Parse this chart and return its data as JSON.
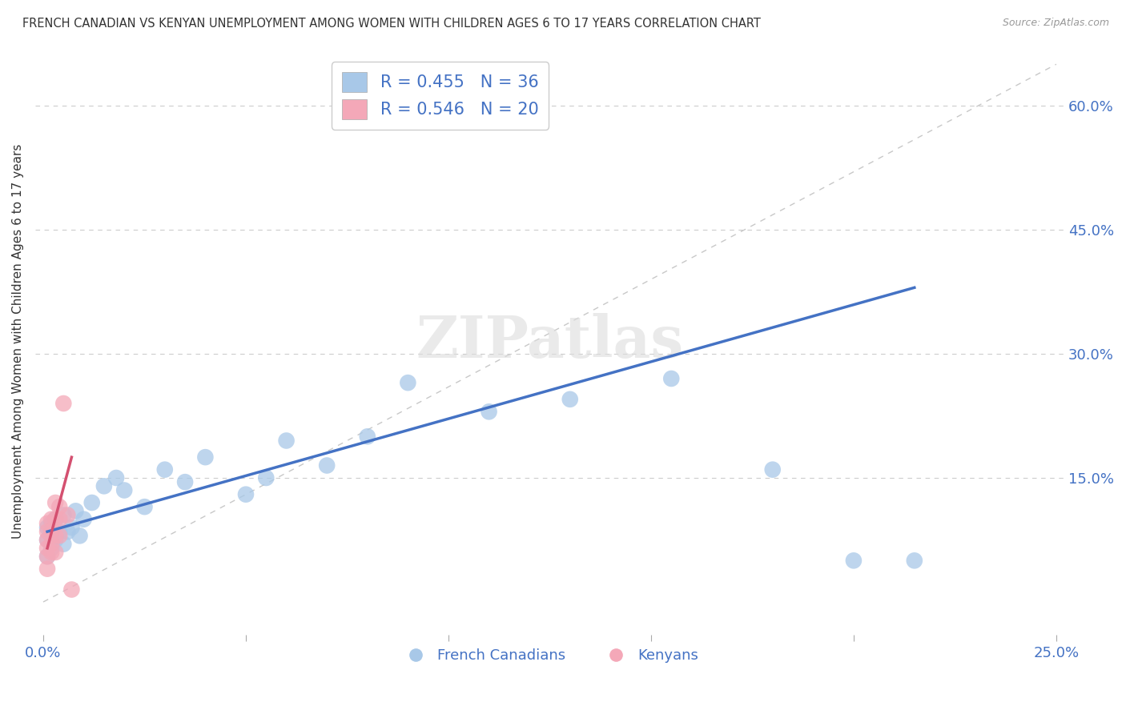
{
  "title": "FRENCH CANADIAN VS KENYAN UNEMPLOYMENT AMONG WOMEN WITH CHILDREN AGES 6 TO 17 YEARS CORRELATION CHART",
  "source": "Source: ZipAtlas.com",
  "ylabel": "Unemployment Among Women with Children Ages 6 to 17 years",
  "xlim": [
    -0.002,
    0.252
  ],
  "ylim": [
    -0.04,
    0.67
  ],
  "yticks_right": [
    0.15,
    0.3,
    0.45,
    0.6
  ],
  "ytick_labels_right": [
    "15.0%",
    "30.0%",
    "45.0%",
    "60.0%"
  ],
  "xtick_vals": [
    0.0,
    0.05,
    0.1,
    0.15,
    0.2,
    0.25
  ],
  "xtick_labels": [
    "0.0%",
    "",
    "",
    "",
    "",
    "25.0%"
  ],
  "r_french": 0.455,
  "n_french": 36,
  "r_kenyan": 0.546,
  "n_kenyan": 20,
  "french_color": "#a8c8e8",
  "kenyan_color": "#f4a8b8",
  "french_line_color": "#4472c4",
  "kenyan_line_color": "#d45070",
  "ref_line_color": "#c8c8c8",
  "watermark": "ZIPatlas",
  "background_color": "#ffffff",
  "fc_x": [
    0.001,
    0.001,
    0.001,
    0.002,
    0.002,
    0.002,
    0.003,
    0.003,
    0.004,
    0.005,
    0.005,
    0.006,
    0.007,
    0.008,
    0.009,
    0.01,
    0.012,
    0.015,
    0.018,
    0.02,
    0.025,
    0.03,
    0.035,
    0.04,
    0.05,
    0.055,
    0.06,
    0.07,
    0.08,
    0.09,
    0.11,
    0.13,
    0.155,
    0.18,
    0.2,
    0.215
  ],
  "fc_y": [
    0.055,
    0.075,
    0.09,
    0.065,
    0.08,
    0.095,
    0.075,
    0.1,
    0.085,
    0.07,
    0.105,
    0.085,
    0.09,
    0.11,
    0.08,
    0.1,
    0.12,
    0.14,
    0.15,
    0.135,
    0.115,
    0.16,
    0.145,
    0.175,
    0.13,
    0.15,
    0.195,
    0.165,
    0.2,
    0.265,
    0.23,
    0.245,
    0.27,
    0.16,
    0.05,
    0.05
  ],
  "ke_x": [
    0.001,
    0.001,
    0.001,
    0.001,
    0.001,
    0.001,
    0.002,
    0.002,
    0.002,
    0.002,
    0.003,
    0.003,
    0.003,
    0.003,
    0.004,
    0.004,
    0.004,
    0.005,
    0.006,
    0.007
  ],
  "ke_y": [
    0.055,
    0.065,
    0.075,
    0.085,
    0.095,
    0.04,
    0.06,
    0.07,
    0.085,
    0.1,
    0.06,
    0.08,
    0.1,
    0.12,
    0.08,
    0.1,
    0.115,
    0.24,
    0.105,
    0.015
  ],
  "fc_trend_x": [
    0.001,
    0.215
  ],
  "fc_trend_y": [
    0.085,
    0.38
  ],
  "ke_trend_x": [
    0.001,
    0.007
  ],
  "ke_trend_y": [
    0.065,
    0.175
  ]
}
